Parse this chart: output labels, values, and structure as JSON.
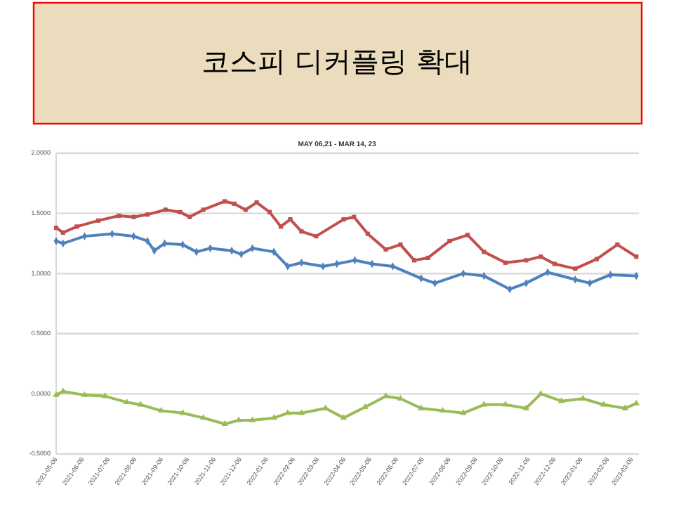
{
  "chart_data": {
    "type": "line",
    "title": "코스피 디커플링 확대",
    "subtitle": "MAY 06,21 - MAR 14, 23",
    "ylim": [
      -0.5,
      2
    ],
    "yticks": [
      {
        "value": -0.5,
        "label": "-0.5000"
      },
      {
        "value": 0,
        "label": "0.0000"
      },
      {
        "value": 0.5,
        "label": "0.5000"
      },
      {
        "value": 1,
        "label": "1.0000"
      },
      {
        "value": 1.5,
        "label": "1.5000"
      },
      {
        "value": 2,
        "label": "2.0000"
      }
    ],
    "xlim": [
      "2021-05-06",
      "2023-03-14"
    ],
    "xticks": [
      "2021-05-06",
      "2021-06-06",
      "2021-07-06",
      "2021-08-06",
      "2021-09-06",
      "2021-10-06",
      "2021-11-06",
      "2021-12-06",
      "2022-01-06",
      "2022-02-06",
      "2022-03-06",
      "2022-04-06",
      "2022-05-06",
      "2022-06-06",
      "2022-07-06",
      "2022-08-06",
      "2022-09-06",
      "2022-10-06",
      "2022-11-06",
      "2022-12-06",
      "2023-01-06",
      "2023-02-06",
      "2023-03-06"
    ],
    "grid": "y",
    "line_style": "solid",
    "series": [
      {
        "color": "#c0504d",
        "marker": "square",
        "x": [
          "2021-05-06",
          "2021-05-14",
          "2021-05-30",
          "2021-06-24",
          "2021-07-18",
          "2021-08-04",
          "2021-08-20",
          "2021-09-10",
          "2021-09-27",
          "2021-10-08",
          "2021-10-24",
          "2021-11-18",
          "2021-11-29",
          "2021-12-12",
          "2021-12-25",
          "2022-01-09",
          "2022-01-22",
          "2022-02-02",
          "2022-02-15",
          "2022-03-04",
          "2022-04-05",
          "2022-04-17",
          "2022-05-03",
          "2022-05-24",
          "2022-06-10",
          "2022-06-26",
          "2022-07-12",
          "2022-08-06",
          "2022-08-27",
          "2022-09-15",
          "2022-10-10",
          "2022-11-03",
          "2022-11-20",
          "2022-12-06",
          "2022-12-30",
          "2023-01-24",
          "2023-02-17",
          "2023-03-11"
        ],
        "values": [
          1.38,
          1.34,
          1.39,
          1.44,
          1.48,
          1.47,
          1.49,
          1.53,
          1.51,
          1.47,
          1.53,
          1.6,
          1.58,
          1.53,
          1.59,
          1.51,
          1.39,
          1.45,
          1.35,
          1.31,
          1.45,
          1.47,
          1.33,
          1.2,
          1.24,
          1.11,
          1.13,
          1.27,
          1.32,
          1.18,
          1.09,
          1.11,
          1.14,
          1.08,
          1.04,
          1.12,
          1.24,
          1.14
        ]
      },
      {
        "color": "#4f81bd",
        "marker": "diamond",
        "x": [
          "2021-05-06",
          "2021-05-14",
          "2021-06-08",
          "2021-07-10",
          "2021-08-04",
          "2021-08-20",
          "2021-08-28",
          "2021-09-09",
          "2021-09-30",
          "2021-10-16",
          "2021-11-01",
          "2021-11-26",
          "2021-12-07",
          "2021-12-20",
          "2022-01-14",
          "2022-01-30",
          "2022-02-15",
          "2022-03-12",
          "2022-03-28",
          "2022-04-18",
          "2022-05-08",
          "2022-06-01",
          "2022-07-04",
          "2022-07-20",
          "2022-08-22",
          "2022-09-15",
          "2022-10-15",
          "2022-11-03",
          "2022-11-28",
          "2022-12-30",
          "2023-01-16",
          "2023-02-09",
          "2023-03-11"
        ],
        "values": [
          1.27,
          1.25,
          1.31,
          1.33,
          1.31,
          1.27,
          1.19,
          1.25,
          1.24,
          1.18,
          1.21,
          1.19,
          1.16,
          1.21,
          1.18,
          1.06,
          1.09,
          1.06,
          1.08,
          1.11,
          1.08,
          1.06,
          0.96,
          0.92,
          1.0,
          0.98,
          0.87,
          0.92,
          1.01,
          0.95,
          0.92,
          0.99,
          0.98
        ]
      },
      {
        "color": "#9bbb59",
        "marker": "triangle",
        "x": [
          "2021-05-06",
          "2021-05-14",
          "2021-06-08",
          "2021-07-02",
          "2021-07-27",
          "2021-08-12",
          "2021-09-05",
          "2021-09-30",
          "2021-10-24",
          "2021-11-18",
          "2021-12-04",
          "2021-12-20",
          "2022-01-14",
          "2022-01-30",
          "2022-02-15",
          "2022-03-15",
          "2022-04-05",
          "2022-04-30",
          "2022-05-24",
          "2022-06-10",
          "2022-07-04",
          "2022-07-29",
          "2022-08-22",
          "2022-09-15",
          "2022-10-10",
          "2022-11-03",
          "2022-11-20",
          "2022-12-14",
          "2023-01-08",
          "2023-02-01",
          "2023-02-26",
          "2023-03-11"
        ],
        "values": [
          -0.01,
          0.02,
          -0.01,
          -0.02,
          -0.07,
          -0.09,
          -0.14,
          -0.16,
          -0.2,
          -0.25,
          -0.22,
          -0.22,
          -0.2,
          -0.16,
          -0.16,
          -0.12,
          -0.2,
          -0.11,
          -0.02,
          -0.04,
          -0.12,
          -0.14,
          -0.16,
          -0.09,
          -0.09,
          -0.12,
          0.0,
          -0.06,
          -0.04,
          -0.09,
          -0.12,
          -0.08
        ]
      }
    ]
  }
}
